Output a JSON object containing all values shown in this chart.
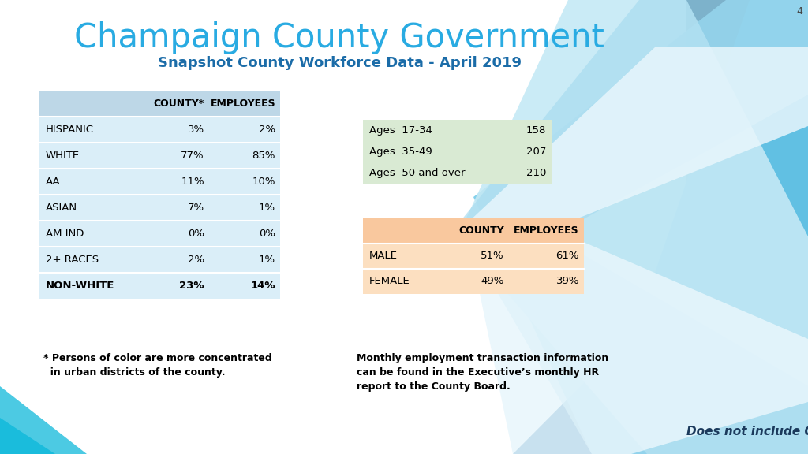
{
  "title": "Champaign County Government",
  "subtitle": "Snapshot County Workforce Data - April 2019",
  "title_color": "#29ABE2",
  "subtitle_color": "#1B6CA8",
  "bg_color": "#FFFFFF",
  "race_table": {
    "headers": [
      "",
      "COUNTY*",
      "EMPLOYEES"
    ],
    "rows": [
      [
        "HISPANIC",
        "3%",
        "2%"
      ],
      [
        "WHITE",
        "77%",
        "85%"
      ],
      [
        "AA",
        "11%",
        "10%"
      ],
      [
        "ASIAN",
        "7%",
        "1%"
      ],
      [
        "AM IND",
        "0%",
        "0%"
      ],
      [
        "2+ RACES",
        "2%",
        "1%"
      ],
      [
        "NON-WHITE",
        "23%",
        "14%"
      ]
    ],
    "header_bg": "#BDD7E7",
    "row_bg": "#DAEEF8",
    "text_color": "#000000"
  },
  "age_table": {
    "rows": [
      [
        "Ages  17-34",
        "158"
      ],
      [
        "Ages  35-49",
        "207"
      ],
      [
        "Ages  50 and over",
        "210"
      ]
    ],
    "bg_color": "#D9EAD3",
    "text_color": "#000000"
  },
  "gender_table": {
    "headers": [
      "",
      "COUNTY",
      "EMPLOYEES"
    ],
    "rows": [
      [
        "MALE",
        "51%",
        "61%"
      ],
      [
        "FEMALE",
        "49%",
        "39%"
      ]
    ],
    "header_bg": "#F9C89E",
    "row_bg": "#FCDFC0",
    "text_color": "#000000"
  },
  "footnote": "* Persons of color are more concentrated\n  in urban districts of the county.",
  "note_right": "Monthly employment transaction information\ncan be found in the Executive’s monthly HR\nreport to the County Board.",
  "bottom_right_text": "Does not include CCRPC",
  "slide_number": "4"
}
